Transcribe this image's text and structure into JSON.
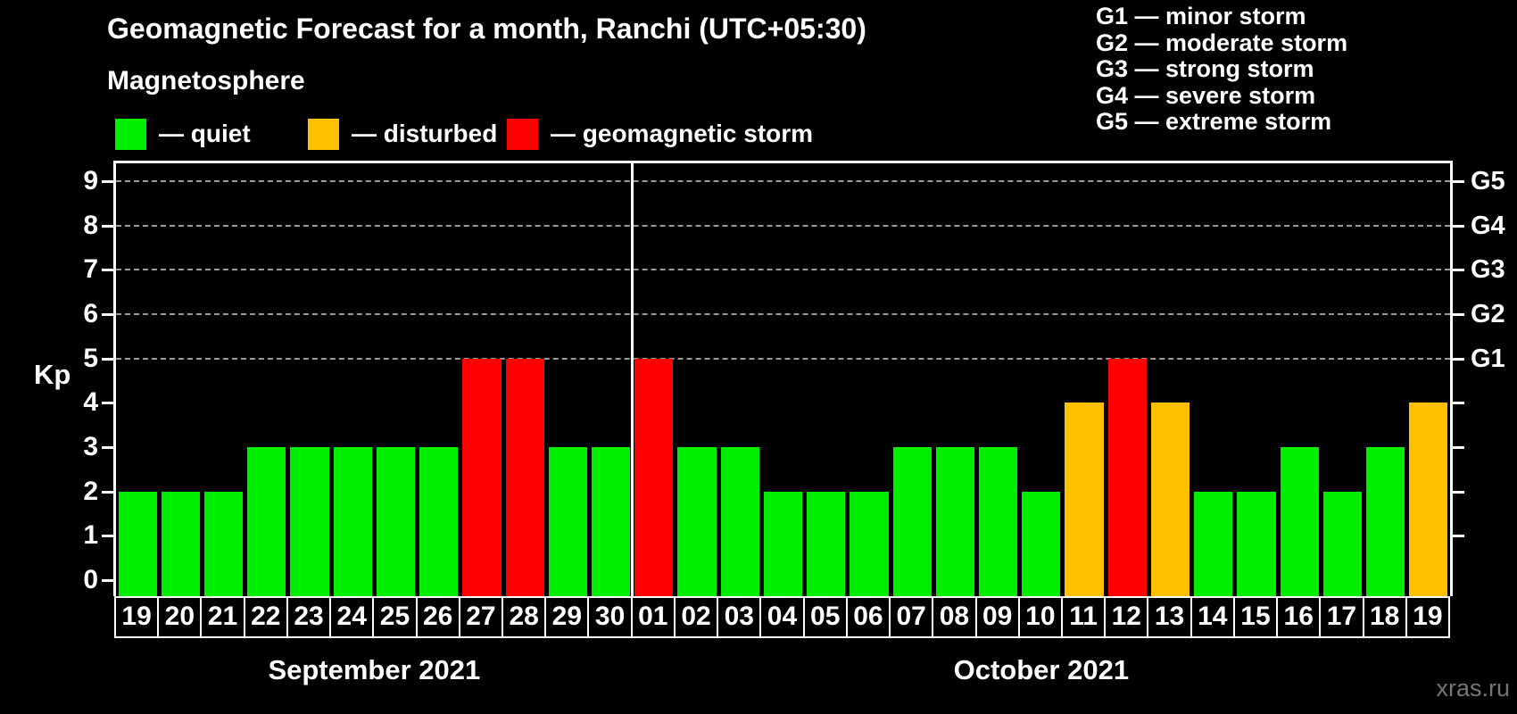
{
  "title": "Geomagnetic Forecast for a month, Ranchi (UTC+05:30)",
  "watermark": "xras.ru",
  "legend": {
    "heading": "Magnetosphere",
    "items": [
      {
        "status": "quiet",
        "label": "— quiet"
      },
      {
        "status": "disturbed",
        "label": "— disturbed"
      },
      {
        "status": "storm",
        "label": "— geomagnetic storm"
      }
    ]
  },
  "storm_scale_legend": [
    "G1 — minor storm",
    "G2 — moderate storm",
    "G3 — strong storm",
    "G4 — severe storm",
    "G5 — extreme storm"
  ],
  "chart_data": {
    "type": "bar",
    "title": "Geomagnetic Forecast for a month, Ranchi (UTC+05:30)",
    "ylabel": "Kp",
    "ylim": [
      0,
      9
    ],
    "yticks": [
      0,
      1,
      2,
      3,
      4,
      5,
      6,
      7,
      8,
      9
    ],
    "grid": "dashed horizontal lines at Kp 5-9 only",
    "legend_position": "top",
    "status_colors": {
      "quiet": "#00ee00",
      "disturbed": "#ffc000",
      "storm": "#ff0000"
    },
    "right_axis": [
      {
        "kp": 5,
        "label": "G1"
      },
      {
        "kp": 6,
        "label": "G2"
      },
      {
        "kp": 7,
        "label": "G3"
      },
      {
        "kp": 8,
        "label": "G4"
      },
      {
        "kp": 9,
        "label": "G5"
      }
    ],
    "months": [
      {
        "label": "September 2021",
        "days": 12
      },
      {
        "label": "October 2021",
        "days": 19
      }
    ],
    "days": [
      {
        "date": "19",
        "kp": 2,
        "status": "quiet"
      },
      {
        "date": "20",
        "kp": 2,
        "status": "quiet"
      },
      {
        "date": "21",
        "kp": 2,
        "status": "quiet"
      },
      {
        "date": "22",
        "kp": 3,
        "status": "quiet"
      },
      {
        "date": "23",
        "kp": 3,
        "status": "quiet"
      },
      {
        "date": "24",
        "kp": 3,
        "status": "quiet"
      },
      {
        "date": "25",
        "kp": 3,
        "status": "quiet"
      },
      {
        "date": "26",
        "kp": 3,
        "status": "quiet"
      },
      {
        "date": "27",
        "kp": 5,
        "status": "storm"
      },
      {
        "date": "28",
        "kp": 5,
        "status": "storm"
      },
      {
        "date": "29",
        "kp": 3,
        "status": "quiet"
      },
      {
        "date": "30",
        "kp": 3,
        "status": "quiet"
      },
      {
        "date": "01",
        "kp": 5,
        "status": "storm"
      },
      {
        "date": "02",
        "kp": 3,
        "status": "quiet"
      },
      {
        "date": "03",
        "kp": 3,
        "status": "quiet"
      },
      {
        "date": "04",
        "kp": 2,
        "status": "quiet"
      },
      {
        "date": "05",
        "kp": 2,
        "status": "quiet"
      },
      {
        "date": "06",
        "kp": 2,
        "status": "quiet"
      },
      {
        "date": "07",
        "kp": 3,
        "status": "quiet"
      },
      {
        "date": "08",
        "kp": 3,
        "status": "quiet"
      },
      {
        "date": "09",
        "kp": 3,
        "status": "quiet"
      },
      {
        "date": "10",
        "kp": 2,
        "status": "quiet"
      },
      {
        "date": "11",
        "kp": 4,
        "status": "disturbed"
      },
      {
        "date": "12",
        "kp": 5,
        "status": "storm"
      },
      {
        "date": "13",
        "kp": 4,
        "status": "disturbed"
      },
      {
        "date": "14",
        "kp": 2,
        "status": "quiet"
      },
      {
        "date": "15",
        "kp": 2,
        "status": "quiet"
      },
      {
        "date": "16",
        "kp": 3,
        "status": "quiet"
      },
      {
        "date": "17",
        "kp": 2,
        "status": "quiet"
      },
      {
        "date": "18",
        "kp": 3,
        "status": "quiet"
      },
      {
        "date": "19",
        "kp": 4,
        "status": "disturbed"
      }
    ]
  }
}
